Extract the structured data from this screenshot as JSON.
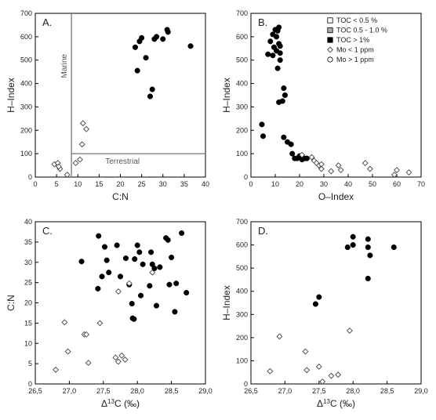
{
  "chart_data": [
    {
      "type": "scatter",
      "panel_label": "A.",
      "xlabel": "C:N",
      "ylabel": "H–Index",
      "xlim": [
        0,
        40
      ],
      "ylim": [
        0,
        700
      ],
      "xticks": [
        "0",
        "5",
        "10",
        "15",
        "20",
        "25",
        "30",
        "35",
        "40"
      ],
      "yticks": [
        "0",
        "100",
        "200",
        "300",
        "400",
        "500",
        "600",
        "700"
      ],
      "reference_lines": {
        "vertical_x": 8.5,
        "horizontal_y": 100
      },
      "region_labels": {
        "vertical": "Marine",
        "horizontal": "Terrestrial"
      },
      "series": [
        {
          "marker": "open-diamond",
          "points": [
            [
              4.5,
              55
            ],
            [
              5.3,
              60
            ],
            [
              5.8,
              35
            ],
            [
              5.5,
              45
            ],
            [
              7.5,
              10
            ],
            [
              9.5,
              60
            ],
            [
              10.5,
              75
            ],
            [
              11,
              140
            ],
            [
              11.2,
              230
            ],
            [
              12,
              205
            ]
          ]
        },
        {
          "marker": "filled-circle",
          "points": [
            [
              23.5,
              555
            ],
            [
              24,
              455
            ],
            [
              24.5,
              580
            ],
            [
              25,
              595
            ],
            [
              26,
              510
            ],
            [
              27,
              345
            ],
            [
              27.5,
              375
            ],
            [
              28,
              590
            ],
            [
              28.5,
              600
            ],
            [
              30,
              590
            ],
            [
              31,
              630
            ],
            [
              31.2,
              620
            ],
            [
              36.5,
              560
            ]
          ]
        }
      ]
    },
    {
      "type": "scatter",
      "panel_label": "B.",
      "xlabel": "O–Index",
      "ylabel": "H–Index",
      "xlim": [
        0,
        70
      ],
      "ylim": [
        0,
        700
      ],
      "xticks": [
        "0",
        "10",
        "20",
        "30",
        "40",
        "50",
        "60",
        "70"
      ],
      "yticks": [
        "0",
        "100",
        "200",
        "300",
        "400",
        "500",
        "600",
        "700"
      ],
      "legend": {
        "position": "top-right",
        "entries": [
          {
            "marker": "open-square",
            "label": "TOC < 0.5 %"
          },
          {
            "marker": "gray-square",
            "label": "TOC 0.5 - 1.0 %"
          },
          {
            "marker": "filled-square",
            "label": "TOC > 1%"
          },
          {
            "marker": "open-diamond",
            "label": "Mo < 1 ppm"
          },
          {
            "marker": "open-circle",
            "label": "Mo > 1 ppm"
          }
        ]
      },
      "series": [
        {
          "marker": "filled-circle",
          "points": [
            [
              4.5,
              225
            ],
            [
              5,
              175
            ],
            [
              7,
              525
            ],
            [
              8,
              580
            ],
            [
              9,
              610
            ],
            [
              9,
              520
            ],
            [
              9.5,
              555
            ],
            [
              10,
              630
            ],
            [
              10.5,
              600
            ],
            [
              10.5,
              540
            ],
            [
              11,
              625
            ],
            [
              11,
              465
            ],
            [
              11.5,
              640
            ],
            [
              11.5,
              570
            ],
            [
              12,
              560
            ],
            [
              12,
              500
            ],
            [
              12,
              530
            ],
            [
              11.5,
              320
            ],
            [
              13,
              325
            ],
            [
              13.5,
              380
            ],
            [
              14,
              350
            ],
            [
              13.5,
              170
            ],
            [
              15,
              150
            ],
            [
              16.5,
              140
            ],
            [
              17,
              100
            ],
            [
              18,
              80
            ],
            [
              19,
              80
            ],
            [
              20,
              90
            ],
            [
              21,
              75
            ],
            [
              22,
              80
            ],
            [
              23,
              80
            ]
          ]
        },
        {
          "marker": "open-diamond",
          "points": [
            [
              21,
              95
            ],
            [
              25,
              85
            ],
            [
              26,
              70
            ],
            [
              27,
              60
            ],
            [
              28,
              50
            ],
            [
              29,
              35
            ],
            [
              29,
              55
            ],
            [
              33,
              25
            ],
            [
              36,
              50
            ],
            [
              37,
              30
            ],
            [
              47,
              60
            ],
            [
              49,
              35
            ],
            [
              59,
              10
            ],
            [
              60,
              30
            ],
            [
              65,
              20
            ]
          ]
        }
      ]
    },
    {
      "type": "scatter",
      "panel_label": "C.",
      "xlabel": "Δ13C (‰)",
      "ylabel": "C:N",
      "xlim": [
        26.5,
        29.0
      ],
      "ylim": [
        0,
        40
      ],
      "xticks": [
        "26,5",
        "27,0",
        "27,5",
        "28,0",
        "28,5",
        "29,0"
      ],
      "yticks": [
        "0",
        "5",
        "10",
        "15",
        "20",
        "25",
        "30",
        "35",
        "40"
      ],
      "series": [
        {
          "marker": "filled-circle",
          "points": [
            [
              27.18,
              30.2
            ],
            [
              27.42,
              23.5
            ],
            [
              27.43,
              36.5
            ],
            [
              27.48,
              26.5
            ],
            [
              27.52,
              33.8
            ],
            [
              27.55,
              30.5
            ],
            [
              27.58,
              27.5
            ],
            [
              27.7,
              34.2
            ],
            [
              27.75,
              26.5
            ],
            [
              27.83,
              31
            ],
            [
              27.88,
              24.5
            ],
            [
              27.92,
              19.8
            ],
            [
              27.93,
              16.2
            ],
            [
              27.95,
              16
            ],
            [
              27.96,
              30.8
            ],
            [
              28.0,
              34.2
            ],
            [
              28.03,
              32.5
            ],
            [
              28.05,
              21.8
            ],
            [
              28.08,
              29.5
            ],
            [
              28.18,
              24.2
            ],
            [
              28.2,
              32.5
            ],
            [
              28.22,
              29.5
            ],
            [
              28.25,
              28.5
            ],
            [
              28.28,
              19.3
            ],
            [
              28.33,
              28.8
            ],
            [
              28.42,
              36
            ],
            [
              28.45,
              35.5
            ],
            [
              28.47,
              24.5
            ],
            [
              28.5,
              31.2
            ],
            [
              28.55,
              17.8
            ],
            [
              28.57,
              24.8
            ],
            [
              28.65,
              37.2
            ],
            [
              28.72,
              22.5
            ]
          ]
        },
        {
          "marker": "open-diamond",
          "points": [
            [
              26.8,
              3.5
            ],
            [
              26.93,
              15.2
            ],
            [
              26.98,
              8
            ],
            [
              27.22,
              12.2
            ],
            [
              27.25,
              12.2
            ],
            [
              27.28,
              5.2
            ],
            [
              27.45,
              15
            ],
            [
              27.68,
              6.5
            ],
            [
              27.72,
              5.5
            ],
            [
              27.72,
              22.8
            ],
            [
              27.77,
              7
            ],
            [
              27.82,
              6
            ],
            [
              27.88,
              24.8
            ],
            [
              28.22,
              27.5
            ]
          ]
        }
      ]
    },
    {
      "type": "scatter",
      "panel_label": "D.",
      "xlabel": "Δ13C (‰)",
      "ylabel": "H–Index",
      "xlim": [
        26.5,
        29.0
      ],
      "ylim": [
        0,
        700
      ],
      "xticks": [
        "26,5",
        "27,0",
        "27,5",
        "28,0",
        "28,5",
        "29,0"
      ],
      "yticks": [
        "0",
        "100",
        "200",
        "300",
        "400",
        "500",
        "600",
        "700"
      ],
      "series": [
        {
          "marker": "filled-circle",
          "points": [
            [
              27.45,
              345
            ],
            [
              27.5,
              375
            ],
            [
              27.92,
              590
            ],
            [
              28.0,
              600
            ],
            [
              28.0,
              635
            ],
            [
              28.22,
              455
            ],
            [
              28.22,
              590
            ],
            [
              28.25,
              555
            ],
            [
              28.22,
              625
            ],
            [
              28.6,
              590
            ]
          ]
        },
        {
          "marker": "open-diamond",
          "points": [
            [
              26.78,
              55
            ],
            [
              26.92,
              205
            ],
            [
              27.3,
              140
            ],
            [
              27.32,
              60
            ],
            [
              27.5,
              75
            ],
            [
              27.55,
              10
            ],
            [
              27.68,
              35
            ],
            [
              27.78,
              40
            ],
            [
              27.95,
              230
            ]
          ]
        }
      ]
    }
  ]
}
